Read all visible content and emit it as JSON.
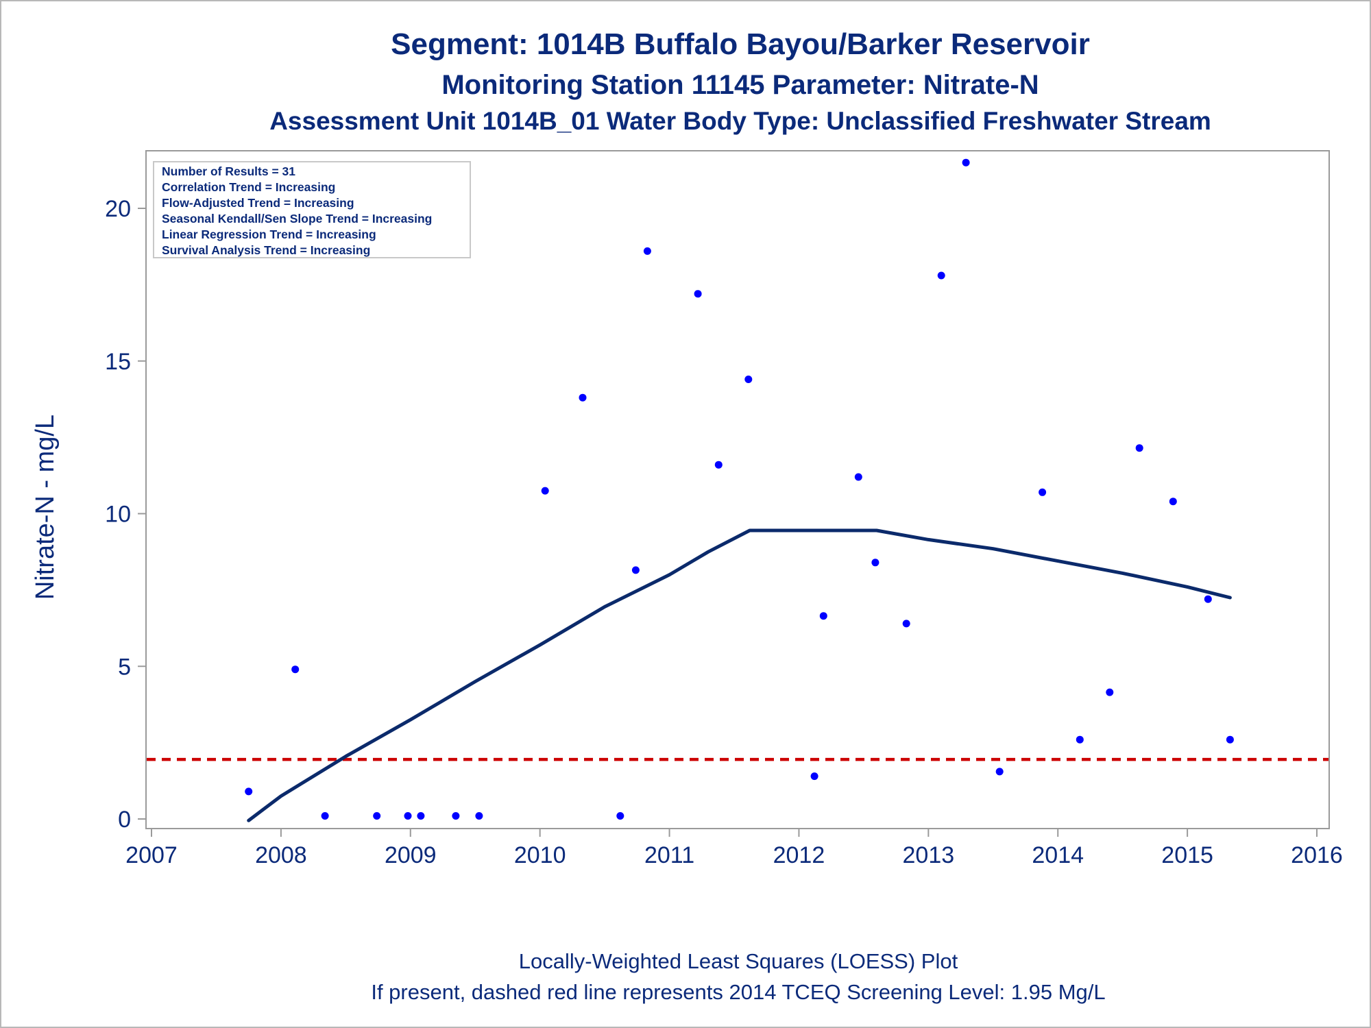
{
  "titles": {
    "line1": "Segment: 1014B  Buffalo Bayou/Barker Reservoir",
    "line2": "Monitoring Station 11145 Parameter: Nitrate-N",
    "line3": "Assessment Unit 1014B_01   Water Body Type: Unclassified Freshwater Stream"
  },
  "footnotes": {
    "line1": "Locally-Weighted Least Squares (LOESS) Plot",
    "line2": "If present, dashed red line represents 2014 TCEQ Screening Level: 1.95 Mg/L"
  },
  "inset": {
    "lines": [
      "Number of Results = 31",
      "Correlation Trend = Increasing",
      "Flow-Adjusted Trend = Increasing",
      "Seasonal Kendall/Sen Slope Trend = Increasing",
      "Linear Regression Trend = Increasing",
      "Survival Analysis Trend = Increasing"
    ]
  },
  "colors": {
    "text": "#0b2a7a",
    "points": "#0000ff",
    "loess": "#0b2a6b",
    "screening": "#cc0000",
    "axis": "#9a9a9a"
  },
  "chart_data": {
    "type": "scatter",
    "title": "Segment: 1014B  Buffalo Bayou/Barker Reservoir",
    "subtitle": "Monitoring Station 11145 Parameter: Nitrate-N",
    "xlabel": "",
    "ylabel": "Nitrate-N - mg/L",
    "xlim": [
      2007,
      2016
    ],
    "ylim": [
      -0.3,
      21.9
    ],
    "xticks": [
      2007,
      2008,
      2009,
      2010,
      2011,
      2012,
      2013,
      2014,
      2015,
      2016
    ],
    "yticks": [
      0,
      5,
      10,
      15,
      20
    ],
    "grid": false,
    "legend": "none",
    "points": [
      {
        "x": 2007.75,
        "y": 0.9
      },
      {
        "x": 2008.11,
        "y": 4.9
      },
      {
        "x": 2008.34,
        "y": 0.1
      },
      {
        "x": 2008.74,
        "y": 0.1
      },
      {
        "x": 2008.98,
        "y": 0.1
      },
      {
        "x": 2009.08,
        "y": 0.1
      },
      {
        "x": 2009.35,
        "y": 0.1
      },
      {
        "x": 2009.53,
        "y": 0.1
      },
      {
        "x": 2010.04,
        "y": 10.75
      },
      {
        "x": 2010.33,
        "y": 13.8
      },
      {
        "x": 2010.62,
        "y": 0.1
      },
      {
        "x": 2010.74,
        "y": 8.15
      },
      {
        "x": 2010.83,
        "y": 18.6
      },
      {
        "x": 2011.22,
        "y": 17.2
      },
      {
        "x": 2011.38,
        "y": 11.6
      },
      {
        "x": 2011.61,
        "y": 14.4
      },
      {
        "x": 2012.12,
        "y": 1.4
      },
      {
        "x": 2012.19,
        "y": 6.65
      },
      {
        "x": 2012.46,
        "y": 11.2
      },
      {
        "x": 2012.59,
        "y": 8.4
      },
      {
        "x": 2012.83,
        "y": 6.4
      },
      {
        "x": 2013.1,
        "y": 17.8
      },
      {
        "x": 2013.29,
        "y": 21.5
      },
      {
        "x": 2013.55,
        "y": 1.55
      },
      {
        "x": 2013.88,
        "y": 10.7
      },
      {
        "x": 2014.17,
        "y": 2.6
      },
      {
        "x": 2014.4,
        "y": 4.15
      },
      {
        "x": 2014.63,
        "y": 12.15
      },
      {
        "x": 2014.89,
        "y": 10.4
      },
      {
        "x": 2015.16,
        "y": 7.2
      },
      {
        "x": 2015.33,
        "y": 2.6
      }
    ],
    "loess": [
      {
        "x": 2007.75,
        "y": -0.05
      },
      {
        "x": 2008.0,
        "y": 0.75
      },
      {
        "x": 2008.5,
        "y": 2.05
      },
      {
        "x": 2009.0,
        "y": 3.25
      },
      {
        "x": 2009.5,
        "y": 4.5
      },
      {
        "x": 2010.0,
        "y": 5.7
      },
      {
        "x": 2010.5,
        "y": 6.95
      },
      {
        "x": 2011.0,
        "y": 8.0
      },
      {
        "x": 2011.3,
        "y": 8.75
      },
      {
        "x": 2011.62,
        "y": 9.45
      },
      {
        "x": 2012.6,
        "y": 9.45
      },
      {
        "x": 2013.0,
        "y": 9.15
      },
      {
        "x": 2013.5,
        "y": 8.85
      },
      {
        "x": 2014.0,
        "y": 8.45
      },
      {
        "x": 2014.5,
        "y": 8.05
      },
      {
        "x": 2015.0,
        "y": 7.6
      },
      {
        "x": 2015.33,
        "y": 7.25
      }
    ],
    "reference_line": {
      "y": 1.95,
      "style": "dashed"
    }
  }
}
